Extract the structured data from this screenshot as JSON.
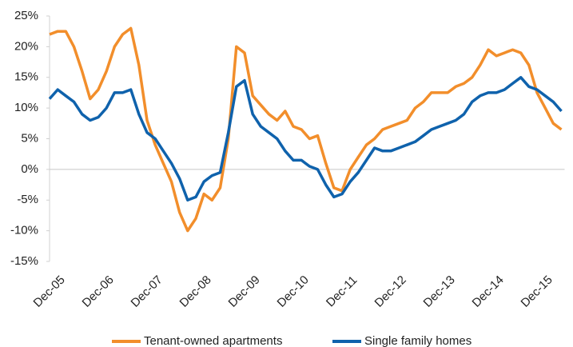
{
  "chart_data": {
    "type": "line",
    "categories": [
      "Dec-05",
      null,
      null,
      null,
      null,
      null,
      "Dec-06",
      null,
      null,
      null,
      null,
      null,
      "Dec-07",
      null,
      null,
      null,
      null,
      null,
      "Dec-08",
      null,
      null,
      null,
      null,
      null,
      "Dec-09",
      null,
      null,
      null,
      null,
      null,
      "Dec-10",
      null,
      null,
      null,
      null,
      null,
      "Dec-11",
      null,
      null,
      null,
      null,
      null,
      "Dec-12",
      null,
      null,
      null,
      null,
      null,
      "Dec-13",
      null,
      null,
      null,
      null,
      null,
      "Dec-14",
      null,
      null,
      null,
      null,
      null,
      "Dec-15",
      null,
      null,
      null
    ],
    "series": [
      {
        "name": "Tenant-owned apartments",
        "color": "#f28e2b",
        "values": [
          22,
          22.5,
          22.5,
          20,
          16,
          11.5,
          13,
          16,
          20,
          22,
          23,
          17,
          8,
          4,
          1,
          -2,
          -7,
          -10,
          -8,
          -4,
          -5,
          -3,
          5,
          20,
          19,
          12,
          10.5,
          9,
          8,
          9.5,
          7,
          6.5,
          5,
          5.5,
          1,
          -3,
          -3.5,
          0,
          2,
          4,
          5,
          6.5,
          7,
          7.5,
          8,
          10,
          11,
          12.5,
          12.5,
          12.5,
          13.5,
          14,
          15,
          17,
          19.5,
          18.5,
          19,
          19.5,
          19,
          17,
          12.5,
          10,
          7.5,
          6.5
        ]
      },
      {
        "name": "Single family homes",
        "color": "#0f62ac",
        "values": [
          11.5,
          13,
          12,
          11,
          9,
          8,
          8.5,
          10,
          12.5,
          12.5,
          13,
          9,
          6,
          5,
          3,
          1,
          -1.5,
          -5,
          -4.5,
          -2,
          -1,
          -0.5,
          6,
          13.5,
          14.5,
          9,
          7,
          6,
          5,
          3,
          1.5,
          1.5,
          0.5,
          0,
          -2.5,
          -4.5,
          -4,
          -2,
          -0.5,
          1.5,
          3.5,
          3,
          3,
          3.5,
          4,
          4.5,
          5.5,
          6.5,
          7,
          7.5,
          8,
          9,
          11,
          12,
          12.5,
          12.5,
          13,
          14,
          15,
          13.5,
          13,
          12,
          11,
          9.5
        ]
      }
    ],
    "ylim": [
      -15,
      25
    ],
    "yticks": [
      {
        "value": -15,
        "label": "-15%"
      },
      {
        "value": -10,
        "label": "-10%"
      },
      {
        "value": -5,
        "label": "-5%"
      },
      {
        "value": 0,
        "label": "0%"
      },
      {
        "value": 5,
        "label": "5%"
      },
      {
        "value": 10,
        "label": "10%"
      },
      {
        "value": 15,
        "label": "15%"
      },
      {
        "value": 20,
        "label": "20%"
      },
      {
        "value": 25,
        "label": "25%"
      }
    ],
    "grid": false,
    "legend": "bottom"
  }
}
